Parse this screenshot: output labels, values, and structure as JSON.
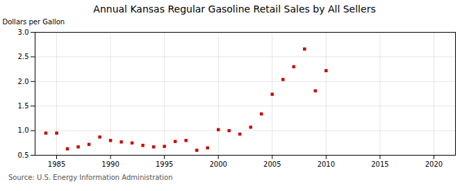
{
  "chart_data": {
    "type": "scatter",
    "title": "Annual Kansas Regular Gasoline Retail Sales by All Sellers",
    "ylabel": "Dollars per Gallon",
    "caption": "Source: U.S. Energy Information Administration",
    "x": [
      1984,
      1985,
      1986,
      1987,
      1988,
      1989,
      1990,
      1991,
      1992,
      1993,
      1994,
      1995,
      1996,
      1997,
      1998,
      1999,
      2000,
      2001,
      2002,
      2003,
      2004,
      2005,
      2006,
      2007,
      2008,
      2009,
      2010
    ],
    "values": [
      0.95,
      0.95,
      0.63,
      0.67,
      0.72,
      0.87,
      0.8,
      0.77,
      0.75,
      0.7,
      0.67,
      0.68,
      0.78,
      0.8,
      0.6,
      0.65,
      1.02,
      1.0,
      0.93,
      1.07,
      1.34,
      1.74,
      2.04,
      2.3,
      2.66,
      1.81,
      2.22
    ],
    "color": "#cc0000",
    "marker": "square",
    "xlim": [
      1983,
      2022
    ],
    "ylim": [
      0.5,
      3.0
    ],
    "xticks": [
      1985,
      1990,
      1995,
      2000,
      2005,
      2010,
      2015,
      2020
    ],
    "yticks": [
      0.5,
      {
        "value": 1,
        "label": "1.0"
      },
      1.5,
      {
        "value": 2,
        "label": "2.0"
      },
      2.5,
      {
        "value": 3,
        "label": "3.0"
      }
    ],
    "grid": true
  }
}
